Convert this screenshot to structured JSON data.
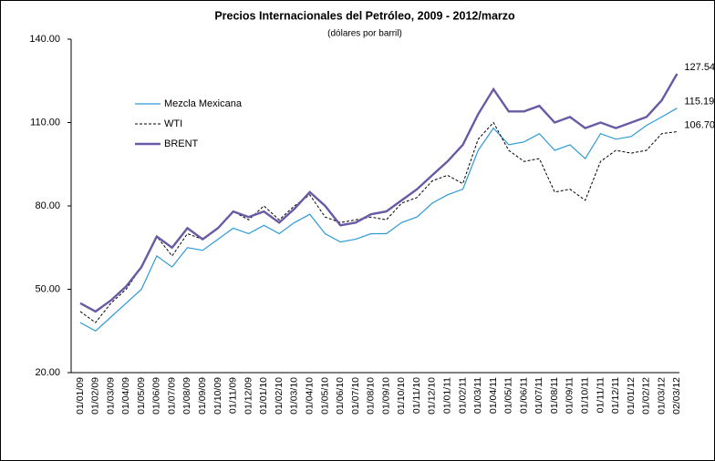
{
  "chart_data": {
    "type": "line",
    "title": "Precios Internacionales del Petróleo, 2009 - 2012/marzo",
    "subtitle": "(dólares por barril)",
    "categories": [
      "01/01/09",
      "01/02/09",
      "01/03/09",
      "01/04/09",
      "01/05/09",
      "01/06/09",
      "01/07/09",
      "01/08/09",
      "01/09/09",
      "01/10/09",
      "01/11/09",
      "01/12/09",
      "01/01/10",
      "01/02/10",
      "01/03/10",
      "01/04/10",
      "01/05/10",
      "01/06/10",
      "01/07/10",
      "01/08/10",
      "01/09/10",
      "01/10/10",
      "01/11/10",
      "01/12/10",
      "01/01/11",
      "01/02/11",
      "01/03/11",
      "01/04/11",
      "01/05/11",
      "01/06/11",
      "01/07/11",
      "01/08/11",
      "01/09/11",
      "01/10/11",
      "01/11/11",
      "01/12/11",
      "01/01/12",
      "01/02/12",
      "01/03/12",
      "02/03/12"
    ],
    "series": [
      {
        "name": "Mezcla Mexicana",
        "color": "#2e9ad6",
        "dash": false,
        "width": 1.2,
        "values": [
          38,
          35,
          40,
          45,
          50,
          62,
          58,
          65,
          64,
          68,
          72,
          70,
          73,
          70,
          74,
          77,
          70,
          67,
          68,
          70,
          70,
          74,
          76,
          81,
          84,
          86,
          100,
          108,
          102,
          103,
          106,
          100,
          102,
          97,
          106,
          104,
          105,
          109,
          112,
          115.19
        ],
        "value_labels": [
          null,
          null,
          null,
          null,
          null,
          null,
          null,
          null,
          null,
          null,
          null,
          null,
          null,
          null,
          null,
          null,
          null,
          null,
          null,
          null,
          null,
          null,
          null,
          null,
          null,
          null,
          null,
          null,
          null,
          null,
          null,
          null,
          null,
          null,
          null,
          null,
          null,
          null,
          null,
          "115.19"
        ]
      },
      {
        "name": "WTI",
        "color": "#000000",
        "dash": true,
        "width": 1,
        "values": [
          42,
          38,
          45,
          50,
          58,
          69,
          62,
          70,
          68,
          72,
          78,
          75,
          80,
          75,
          80,
          84,
          76,
          74,
          75,
          76,
          75,
          81,
          83,
          89,
          91,
          88,
          104,
          110,
          100,
          96,
          97,
          85,
          86,
          82,
          96,
          100,
          99,
          100,
          106,
          106.7
        ],
        "value_labels": [
          null,
          null,
          null,
          null,
          null,
          null,
          null,
          null,
          null,
          null,
          null,
          null,
          null,
          null,
          null,
          null,
          null,
          null,
          null,
          null,
          null,
          null,
          null,
          null,
          null,
          null,
          null,
          null,
          null,
          null,
          null,
          null,
          null,
          null,
          null,
          null,
          null,
          null,
          null,
          "106.70"
        ]
      },
      {
        "name": "BRENT",
        "color": "#6a5aa6",
        "dash": false,
        "width": 2.4,
        "values": [
          45,
          42,
          46,
          51,
          58,
          69,
          65,
          72,
          68,
          72,
          78,
          76,
          78,
          74,
          79,
          85,
          80,
          73,
          74,
          77,
          78,
          82,
          86,
          91,
          96,
          102,
          113,
          122,
          114,
          114,
          116,
          110,
          112,
          108,
          110,
          108,
          110,
          112,
          118,
          127.54
        ],
        "value_labels": [
          null,
          null,
          null,
          null,
          null,
          null,
          null,
          null,
          null,
          null,
          null,
          null,
          null,
          null,
          null,
          null,
          null,
          null,
          null,
          null,
          null,
          null,
          null,
          null,
          null,
          null,
          null,
          null,
          null,
          null,
          null,
          null,
          null,
          null,
          null,
          null,
          null,
          null,
          null,
          "127.54"
        ]
      }
    ],
    "ylim": [
      20,
      140
    ],
    "yticks": [
      {
        "value": 20,
        "label": "20.00"
      },
      {
        "value": 50,
        "label": "50.00"
      },
      {
        "value": 80,
        "label": "80.00"
      },
      {
        "value": 110,
        "label": "110.00"
      },
      {
        "value": 140,
        "label": "140.00"
      }
    ],
    "grid": false,
    "legend": "left"
  }
}
